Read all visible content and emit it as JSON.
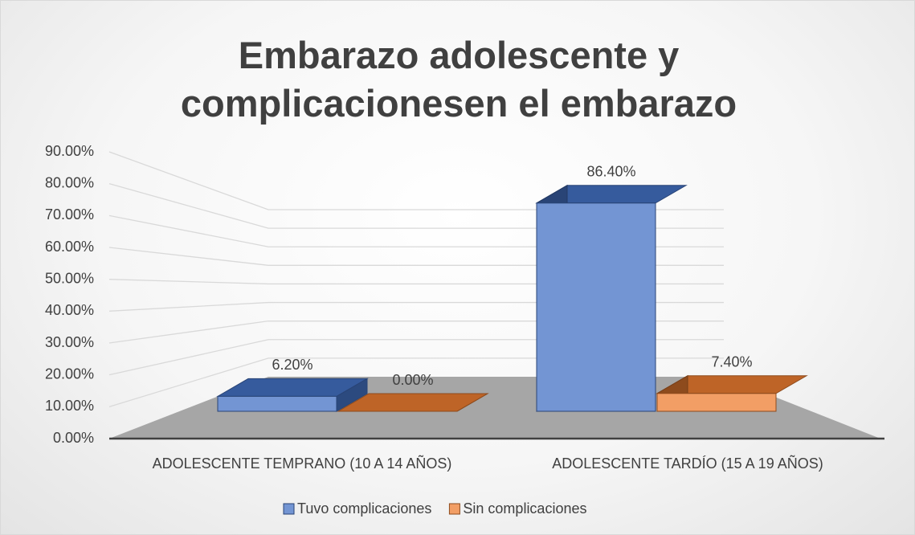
{
  "chart_data": {
    "type": "bar3d",
    "title": "Embarazo adolescente y complicacionesen el embarazo",
    "categories": [
      "ADOLESCENTE TEMPRANO (10 A 14 AÑOS)",
      "ADOLESCENTE TARDÍO (15 A 19 AÑOS)"
    ],
    "series": [
      {
        "name": "Tuvo complicaciones",
        "color": "#4472c4",
        "values": [
          6.2,
          86.4
        ],
        "value_labels": [
          "6.20%",
          "86.40%"
        ]
      },
      {
        "name": "Sin complicaciones",
        "color": "#ed7d31",
        "values": [
          0,
          7.4
        ],
        "value_labels": [
          "0.00%",
          "7.40%"
        ]
      }
    ],
    "ylim": [
      0,
      90
    ],
    "yticks": [
      {
        "value": 0,
        "label": "0.00%"
      },
      {
        "value": 10,
        "label": "10.00%"
      },
      {
        "value": 20,
        "label": "20.00%"
      },
      {
        "value": 30,
        "label": "30.00%"
      },
      {
        "value": 40,
        "label": "40.00%"
      },
      {
        "value": 50,
        "label": "50.00%"
      },
      {
        "value": 60,
        "label": "60.00%"
      },
      {
        "value": 70,
        "label": "70.00%"
      },
      {
        "value": 80,
        "label": "80.00%"
      },
      {
        "value": 90,
        "label": "90.00%"
      }
    ],
    "grid": true,
    "legend": "bottom"
  }
}
